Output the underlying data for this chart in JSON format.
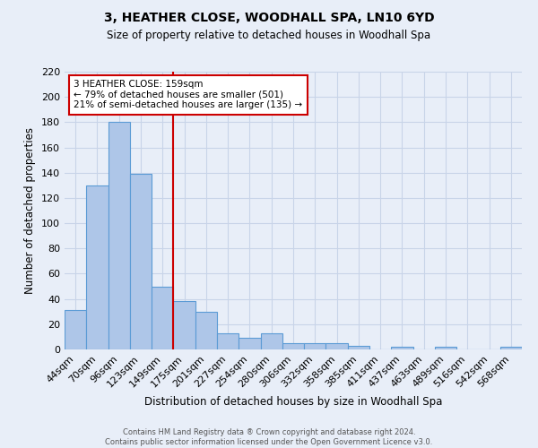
{
  "title": "3, HEATHER CLOSE, WOODHALL SPA, LN10 6YD",
  "subtitle": "Size of property relative to detached houses in Woodhall Spa",
  "xlabel": "Distribution of detached houses by size in Woodhall Spa",
  "ylabel": "Number of detached properties",
  "footer_line1": "Contains HM Land Registry data ® Crown copyright and database right 2024.",
  "footer_line2": "Contains public sector information licensed under the Open Government Licence v3.0.",
  "bin_labels": [
    "44sqm",
    "70sqm",
    "96sqm",
    "123sqm",
    "149sqm",
    "175sqm",
    "201sqm",
    "227sqm",
    "254sqm",
    "280sqm",
    "306sqm",
    "332sqm",
    "358sqm",
    "385sqm",
    "411sqm",
    "437sqm",
    "463sqm",
    "489sqm",
    "516sqm",
    "542sqm",
    "568sqm"
  ],
  "bar_values": [
    31,
    130,
    180,
    139,
    50,
    38,
    30,
    13,
    9,
    13,
    5,
    5,
    5,
    3,
    0,
    2,
    0,
    2,
    0,
    0,
    2
  ],
  "bar_color": "#aec6e8",
  "bar_edge_color": "#5b9bd5",
  "grid_color": "#c8d4e8",
  "bg_color": "#e8eef8",
  "red_line_x": 4.5,
  "annotation_text": "3 HEATHER CLOSE: 159sqm\n← 79% of detached houses are smaller (501)\n21% of semi-detached houses are larger (135) →",
  "annotation_box_color": "#ffffff",
  "annotation_box_edge_color": "#cc0000",
  "ylim": [
    0,
    220
  ],
  "yticks": [
    0,
    20,
    40,
    60,
    80,
    100,
    120,
    140,
    160,
    180,
    200,
    220
  ]
}
